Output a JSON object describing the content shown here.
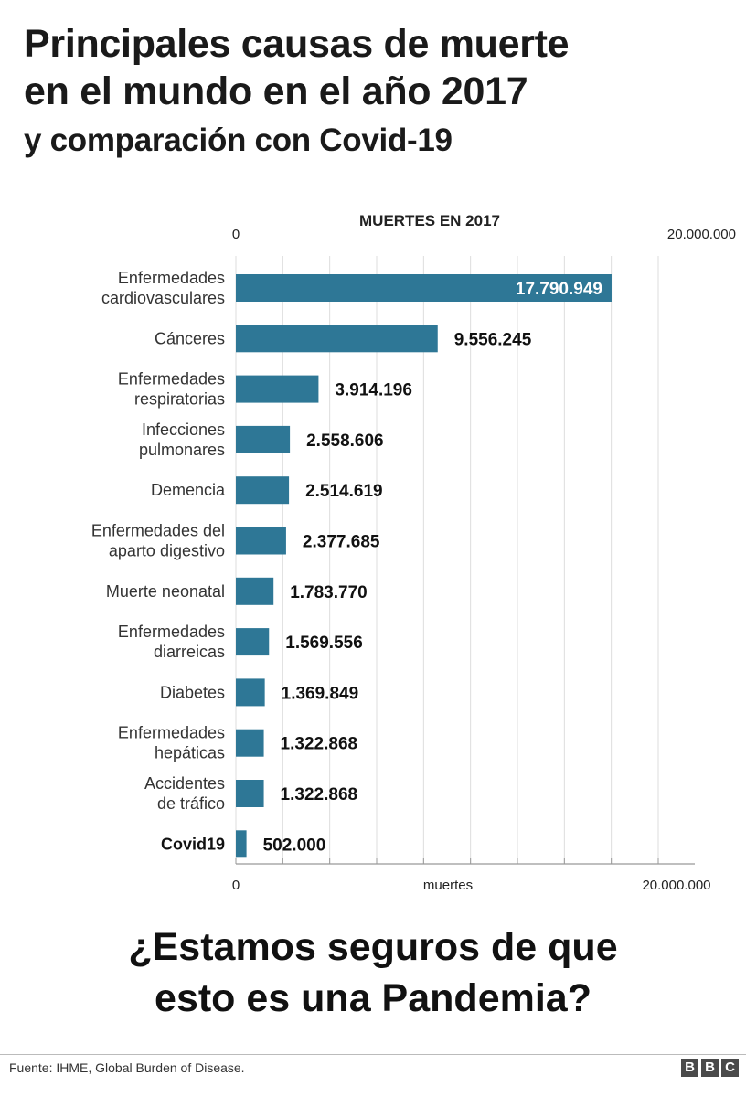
{
  "title": {
    "line1": "Principales causas de muerte",
    "line2": "en el mundo en el año 2017",
    "line3": "y comparación con Covid-19"
  },
  "chart_data": {
    "type": "bar",
    "orientation": "horizontal",
    "title": "MUERTES EN 2017",
    "xlabel": "muertes",
    "xlim": [
      0,
      20000000
    ],
    "tick_labels": {
      "min": "0",
      "max": "20.000.000"
    },
    "grid": true,
    "bar_color": "#2e7796",
    "categories": [
      [
        "Enfermedades",
        "cardiovasculares"
      ],
      [
        "Cánceres"
      ],
      [
        "Enfermedades",
        "respiratorias"
      ],
      [
        "Infecciones",
        "pulmonares"
      ],
      [
        "Demencia"
      ],
      [
        "Enfermedades del",
        "aparto digestivo"
      ],
      [
        "Muerte neonatal"
      ],
      [
        "Enfermedades",
        "diarreicas"
      ],
      [
        "Diabetes"
      ],
      [
        "Enfermedades",
        "hepáticas"
      ],
      [
        "Accidentes",
        "de tráfico"
      ],
      [
        "Covid19"
      ]
    ],
    "values": [
      17790949,
      9556245,
      3914196,
      2558606,
      2514619,
      2377685,
      1783770,
      1569556,
      1369849,
      1322868,
      1322868,
      502000
    ],
    "value_labels": [
      "17.790.949",
      "9.556.245",
      "3.914.196",
      "2.558.606",
      "2.514.619",
      "2.377.685",
      "1.783.770",
      "1.569.556",
      "1.369.849",
      "1.322.868",
      "1.322.868",
      "502.000"
    ],
    "highlight_category": "Covid19"
  },
  "question": {
    "line1": "¿Estamos seguros de que",
    "line2": "esto es una Pandemia?"
  },
  "footer": {
    "source": "Fuente: IHME, Global Burden of Disease.",
    "logo_letters": [
      "B",
      "B",
      "C"
    ]
  }
}
